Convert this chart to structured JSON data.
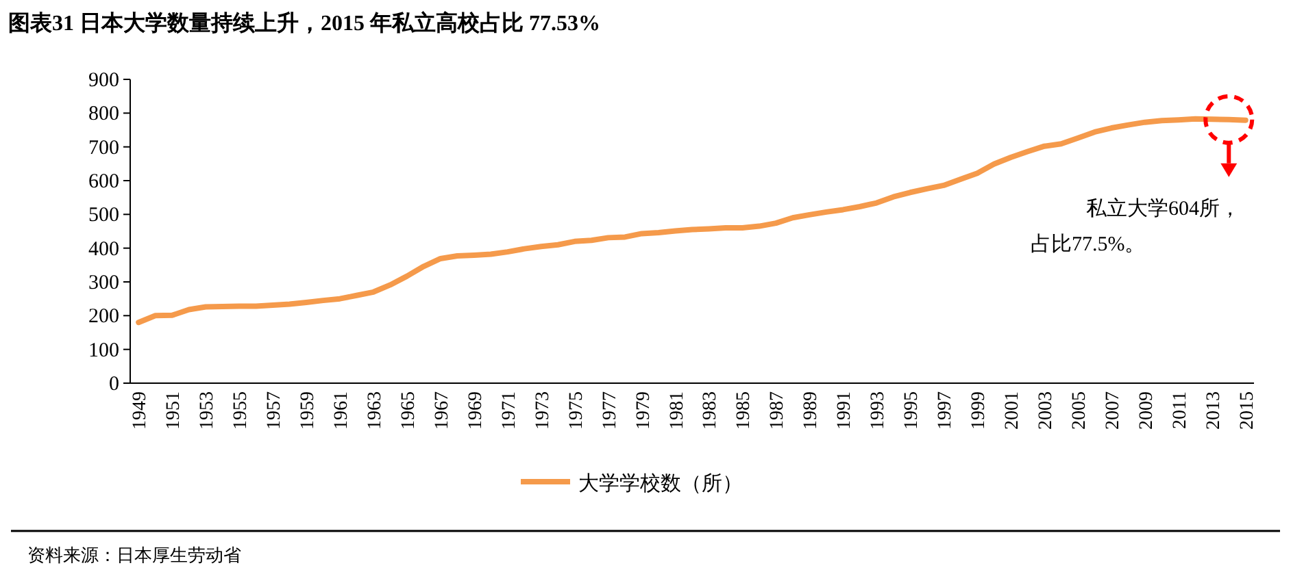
{
  "chart_data": {
    "type": "line",
    "title": "图表31 日本大学数量持续上升，2015 年私立高校占比 77.53%",
    "categories": [
      "1949",
      null,
      "1951",
      null,
      "1953",
      null,
      "1955",
      null,
      "1957",
      null,
      "1959",
      null,
      "1961",
      null,
      "1963",
      null,
      "1965",
      null,
      "1967",
      null,
      "1969",
      null,
      "1971",
      null,
      "1973",
      null,
      "1975",
      null,
      "1977",
      null,
      "1979",
      null,
      "1981",
      null,
      "1983",
      null,
      "1985",
      null,
      "1987",
      null,
      "1989",
      null,
      "1991",
      null,
      "1993",
      null,
      "1995",
      null,
      "1997",
      null,
      "1999",
      null,
      "2001",
      null,
      "2003",
      null,
      "2005",
      null,
      "2007",
      null,
      "2009",
      null,
      "2011",
      null,
      "2013",
      null,
      "2015"
    ],
    "series": [
      {
        "name": "大学学校数（所）",
        "color": "#f59a4b",
        "values": [
          180,
          200,
          201,
          218,
          226,
          227,
          228,
          228,
          231,
          234,
          239,
          245,
          250,
          260,
          270,
          291,
          317,
          346,
          369,
          377,
          379,
          382,
          389,
          398,
          405,
          410,
          420,
          423,
          431,
          433,
          443,
          446,
          451,
          455,
          457,
          460,
          460,
          465,
          474,
          490,
          499,
          507,
          514,
          523,
          534,
          552,
          565,
          576,
          586,
          604,
          622,
          649,
          669,
          686,
          702,
          709,
          726,
          744,
          756,
          765,
          773,
          778,
          780,
          783,
          782,
          781,
          779
        ]
      }
    ],
    "ylim": [
      0,
      900
    ],
    "yticks": [
      0,
      100,
      200,
      300,
      400,
      500,
      600,
      700,
      800,
      900
    ],
    "legend": "bottom",
    "annotations": [
      "私立大学604所，",
      "占比77.5%。",
      "资料来源：日本厚生劳动省"
    ]
  }
}
